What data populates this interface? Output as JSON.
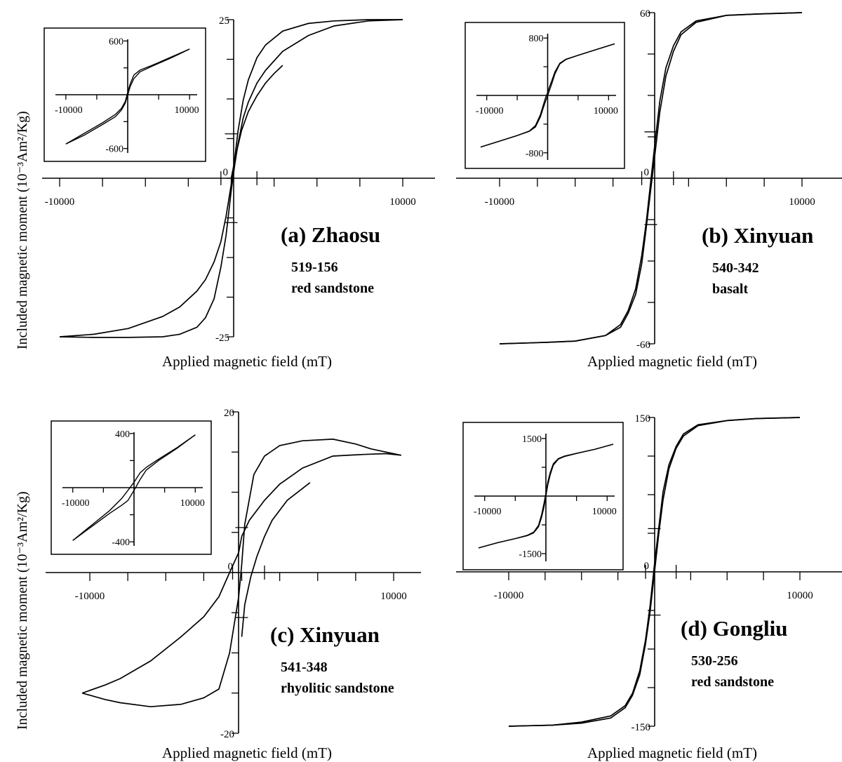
{
  "figure": {
    "y_axis_label_top": "Included magnetic moment (10⁻³Am²/Kg)",
    "y_axis_label_bottom": "Included magnetic moment (10⁻³Am²/Kg)"
  },
  "chart_data": [
    {
      "type": "line",
      "panel": "a",
      "title": "(a) Zhaosu",
      "sample": "519-156",
      "rock": "red sandstone",
      "xlabel": "Applied magnetic field (mT)",
      "xlim": [
        -11000,
        11000
      ],
      "ylim": [
        -25,
        25
      ],
      "x_tick_labels": [
        "-10000",
        "10000"
      ],
      "y_tick_labels": [
        "25",
        "0",
        "-25"
      ],
      "series": [
        {
          "x": [
            -10000,
            -8000,
            -6000,
            -4000,
            -3000,
            -2000,
            -1500,
            -1000,
            -600,
            -300,
            0,
            200,
            400,
            700,
            1000,
            1500,
            2000,
            3000,
            4500,
            6000,
            8000,
            10000
          ],
          "y": [
            -25,
            -24.6,
            -23.7,
            -21.8,
            -20.3,
            -17.8,
            -16,
            -13.2,
            -10,
            -6,
            -1,
            3,
            7.5,
            12.3,
            15.5,
            19,
            21,
            23.2,
            24.4,
            24.8,
            25,
            25
          ]
        },
        {
          "x": [
            -10000,
            -8000,
            -6000,
            -4000,
            -3000,
            -2000,
            -1500,
            -1000,
            -600,
            -300,
            0,
            200,
            400,
            700,
            1000,
            1500,
            2000,
            3000,
            4500,
            6000,
            8000,
            10000
          ],
          "y": [
            -25,
            -25.1,
            -25.1,
            -25,
            -24.6,
            -23.5,
            -22,
            -19,
            -14,
            -9,
            -2,
            2,
            5.5,
            9.5,
            12,
            15,
            17,
            20,
            22.5,
            24,
            24.8,
            25
          ]
        },
        {
          "x": [
            0,
            300,
            600,
            1000,
            1500,
            2000,
            2500,
            3000
          ],
          "y": [
            0,
            4,
            7.5,
            10.5,
            13,
            15,
            16.5,
            17.8
          ]
        }
      ],
      "inset": {
        "x_tick_labels": [
          "-10000",
          "10000"
        ],
        "y_tick_labels": [
          "600",
          "-600"
        ],
        "xlim": [
          -11000,
          11000
        ],
        "ylim": [
          -650,
          650
        ],
        "series": [
          {
            "x": [
              -10000,
              -7000,
              -4000,
              -2000,
              -1000,
              -400,
              0,
              400,
              1000,
              2000,
              4000,
              7000,
              10000
            ],
            "y": [
              -550,
              -450,
              -330,
              -245,
              -170,
              -95,
              -5,
              90,
              180,
              255,
              320,
              410,
              510
            ]
          },
          {
            "x": [
              -10000,
              -7000,
              -4000,
              -2000,
              -1000,
              -400,
              0,
              400,
              1000,
              2000,
              4000,
              7000,
              10000
            ],
            "y": [
              -550,
              -430,
              -310,
              -220,
              -150,
              -75,
              25,
              120,
              220,
              275,
              330,
              420,
              510
            ]
          }
        ]
      }
    },
    {
      "type": "line",
      "panel": "b",
      "title": "(b) Xinyuan",
      "sample": "540-342",
      "rock": "basalt",
      "xlabel": "Applied magnetic field (mT)",
      "xlim": [
        -11000,
        11000
      ],
      "ylim": [
        -60,
        60
      ],
      "x_tick_labels": [
        "-10000",
        "10000"
      ],
      "y_tick_labels": [
        "60",
        "0",
        "-60"
      ],
      "series": [
        {
          "x": [
            -10000,
            -7000,
            -5000,
            -3000,
            -2000,
            -1500,
            -1000,
            -600,
            -300,
            0,
            300,
            600,
            1000,
            1500,
            2000,
            3000,
            5000,
            7000,
            10000
          ],
          "y": [
            -60,
            -59.5,
            -59,
            -57,
            -53,
            -48,
            -40,
            -28,
            -16,
            -1,
            14,
            28,
            40,
            48,
            53,
            57,
            59,
            59.5,
            60
          ]
        },
        {
          "x": [
            -10000,
            -7000,
            -5000,
            -3000,
            -2000,
            -1500,
            -1000,
            -600,
            -300,
            0,
            300,
            600,
            1000,
            1500,
            2000,
            3000,
            5000,
            7000,
            10000
          ],
          "y": [
            -60,
            -59.5,
            -59,
            -57,
            -54,
            -49,
            -42,
            -31,
            -18,
            -4,
            10,
            24,
            37,
            46,
            52,
            56.5,
            59,
            59.5,
            60
          ]
        }
      ],
      "inset": {
        "x_tick_labels": [
          "-10000",
          "10000"
        ],
        "y_tick_labels": [
          "800",
          "-800"
        ],
        "xlim": [
          -11000,
          11000
        ],
        "ylim": [
          -900,
          900
        ],
        "series": [
          {
            "x": [
              -11000,
              -8000,
              -5000,
              -3000,
              -2000,
              -1200,
              -700,
              -300,
              0,
              300,
              700,
              1200,
              2000,
              3000,
              5000,
              8000,
              11000
            ],
            "y": [
              -720,
              -640,
              -560,
              -500,
              -440,
              -300,
              -170,
              -70,
              0,
              70,
              170,
              300,
              440,
              500,
              560,
              640,
              720
            ]
          },
          {
            "x": [
              -11000,
              -8000,
              -5000,
              -3000,
              -2000,
              -1200,
              -700,
              -300,
              0,
              300,
              700,
              1200,
              2000,
              3000,
              5000,
              8000,
              11000
            ],
            "y": [
              -720,
              -640,
              -560,
              -495,
              -420,
              -270,
              -130,
              -20,
              40,
              120,
              210,
              330,
              450,
              505,
              560,
              640,
              720
            ]
          }
        ]
      }
    },
    {
      "type": "line",
      "panel": "c",
      "title": "(c) Xinyuan",
      "sample": "541-348",
      "rock": "rhyolitic sandstone",
      "xlabel": "Applied magnetic field (mT)",
      "xlim": [
        -11000,
        11000
      ],
      "ylim": [
        -20,
        20
      ],
      "x_tick_labels": [
        "-10000",
        "10000"
      ],
      "y_tick_labels": [
        "20",
        "0",
        "-20"
      ],
      "series": [
        {
          "x": [
            -10500,
            -9000,
            -8000,
            -6000,
            -4000,
            -2500,
            -1500,
            -800,
            -200,
            0,
            200,
            800,
            1500,
            2500,
            4000,
            6000,
            7500,
            8500,
            9500,
            10500
          ],
          "y": [
            -15,
            -15.8,
            -16.2,
            -16.7,
            -16.4,
            -15.6,
            -14.5,
            -10,
            -3,
            1,
            6,
            12.2,
            14.5,
            15.8,
            16.4,
            16.6,
            16,
            15.4,
            15,
            14.6
          ]
        },
        {
          "x": [
            -10500,
            -9000,
            -8000,
            -6000,
            -4000,
            -2500,
            -1500,
            -800,
            -200,
            0,
            500,
            1500,
            2500,
            4000,
            6000,
            8000,
            9500,
            10500
          ],
          "y": [
            -15,
            -14,
            -13.2,
            -11,
            -8,
            -5.5,
            -3,
            0,
            2.5,
            4.5,
            6.5,
            9,
            11,
            13,
            14.5,
            14.7,
            14.8,
            14.6
          ]
        },
        {
          "x": [
            0,
            200,
            600,
            1000,
            1500,
            2000,
            3000,
            4500
          ],
          "y": [
            -8,
            -4,
            -0.5,
            2,
            4.5,
            6.5,
            9,
            11.2
          ]
        }
      ],
      "inset": {
        "x_tick_labels": [
          "-10000",
          "10000"
        ],
        "y_tick_labels": [
          "400",
          "-400"
        ],
        "xlim": [
          -11000,
          11000
        ],
        "ylim": [
          -430,
          430
        ],
        "series": [
          {
            "x": [
              -10000,
              -7000,
              -4000,
              -2000,
              -1000,
              0,
              1000,
              2000,
              4000,
              7000,
              10000
            ],
            "y": [
              -390,
              -290,
              -190,
              -130,
              -95,
              -20,
              60,
              130,
              200,
              290,
              390
            ]
          },
          {
            "x": [
              -10000,
              -7000,
              -4000,
              -2000,
              -1000,
              0,
              1000,
              2000,
              4000,
              7000,
              10000
            ],
            "y": [
              -390,
              -280,
              -170,
              -80,
              -20,
              40,
              110,
              150,
              210,
              295,
              390
            ]
          }
        ]
      }
    },
    {
      "type": "line",
      "panel": "d",
      "title": "(d) Gongliu",
      "sample": "530-256",
      "rock": "red sandstone",
      "xlabel": "Applied magnetic field (mT)",
      "xlim": [
        -11000,
        11000
      ],
      "ylim": [
        -150,
        150
      ],
      "x_tick_labels": [
        "-10000",
        "10000"
      ],
      "y_tick_labels": [
        "150",
        "0",
        "-150"
      ],
      "series": [
        {
          "x": [
            -10000,
            -7000,
            -5000,
            -3000,
            -2000,
            -1500,
            -1000,
            -600,
            -300,
            0,
            300,
            600,
            1000,
            1500,
            2000,
            3000,
            5000,
            7000,
            10000
          ],
          "y": [
            -150,
            -149,
            -147,
            -142,
            -132,
            -120,
            -100,
            -70,
            -40,
            -2,
            36,
            70,
            100,
            120,
            132,
            142,
            147,
            149,
            150
          ]
        },
        {
          "x": [
            -10000,
            -7000,
            -5000,
            -3000,
            -2000,
            -1500,
            -1000,
            -600,
            -300,
            0,
            300,
            600,
            1000,
            1500,
            2000,
            3000,
            5000,
            7000,
            10000
          ],
          "y": [
            -150,
            -149,
            -146,
            -140,
            -130,
            -118,
            -96,
            -66,
            -34,
            6,
            42,
            78,
            104,
            122,
            134,
            143,
            147,
            149,
            150
          ]
        }
      ],
      "inset": {
        "x_tick_labels": [
          "-10000",
          "10000"
        ],
        "y_tick_labels": [
          "1500",
          "-1500"
        ],
        "xlim": [
          -11000,
          11000
        ],
        "ylim": [
          -1700,
          1700
        ],
        "series": [
          {
            "x": [
              -11000,
              -8000,
              -5000,
              -3000,
              -2000,
              -1200,
              -700,
              -300,
              0,
              300,
              700,
              1200,
              2000,
              3000,
              5000,
              8000,
              11000
            ],
            "y": [
              -1350,
              -1220,
              -1110,
              -1030,
              -960,
              -800,
              -550,
              -280,
              0,
              280,
              550,
              800,
              960,
              1030,
              1110,
              1220,
              1350
            ]
          },
          {
            "x": [
              -11000,
              -8000,
              -5000,
              -3000,
              -2000,
              -1200,
              -700,
              -300,
              0,
              300,
              700,
              1200,
              2000,
              3000,
              5000,
              8000,
              11000
            ],
            "y": [
              -1350,
              -1220,
              -1105,
              -1020,
              -940,
              -760,
              -480,
              -180,
              80,
              360,
              610,
              840,
              975,
              1040,
              1115,
              1220,
              1350
            ]
          }
        ]
      }
    }
  ]
}
